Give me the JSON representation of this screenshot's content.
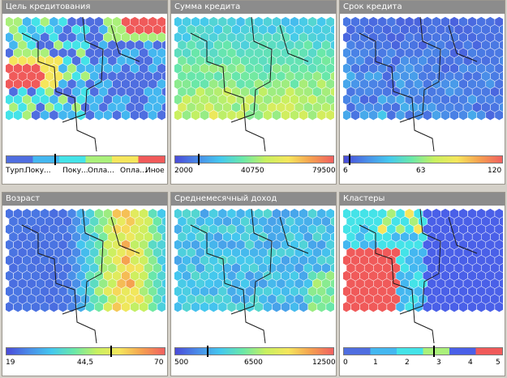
{
  "panels": [
    {
      "id": "p1",
      "title": "Цель кредитования",
      "labels": [
        "Турп.",
        "Поку...",
        "Поку...",
        "Опла...",
        "Опла...",
        "Иное"
      ],
      "marker": 0.31,
      "legend_type": "categorical",
      "legend_colors": [
        "#4f6ee0",
        "#44b7f0",
        "#44e3e8",
        "#aaf07a",
        "#f5e65c",
        "#f05a5a"
      ]
    },
    {
      "id": "p2",
      "title": "Сумма кредита",
      "labels": [
        "2000",
        "40750",
        "79500"
      ],
      "marker": 0.15,
      "legend_type": "gradient"
    },
    {
      "id": "p3",
      "title": "Срок кредита",
      "labels": [
        "6",
        "63",
        "120"
      ],
      "marker": 0.04,
      "legend_type": "gradient"
    },
    {
      "id": "p4",
      "title": "Возраст",
      "labels": [
        "19",
        "44,5",
        "70"
      ],
      "marker": 0.66,
      "legend_type": "gradient"
    },
    {
      "id": "p5",
      "title": "Среднемесячный доход",
      "labels": [
        "500",
        "6500",
        "12500"
      ],
      "marker": 0.21,
      "legend_type": "gradient"
    },
    {
      "id": "p6",
      "title": "Кластеры",
      "labels": [
        "0",
        "1",
        "2",
        "3",
        "4",
        "5"
      ],
      "marker": 0.57,
      "legend_type": "categorical",
      "legend_colors": [
        "#4f6ee0",
        "#44b7f0",
        "#44e3e8",
        "#aaf07a",
        "#4a60e8",
        "#f05a5a"
      ]
    }
  ],
  "colors": {
    "gradient": [
      "#4a4ad8",
      "#4a8ce8",
      "#44c8ee",
      "#6ae8a8",
      "#c8f060",
      "#f5e65c",
      "#f5a050",
      "#f06060"
    ],
    "title_bg": "#8c8c8c",
    "window_bg": "#d4d0c8"
  }
}
